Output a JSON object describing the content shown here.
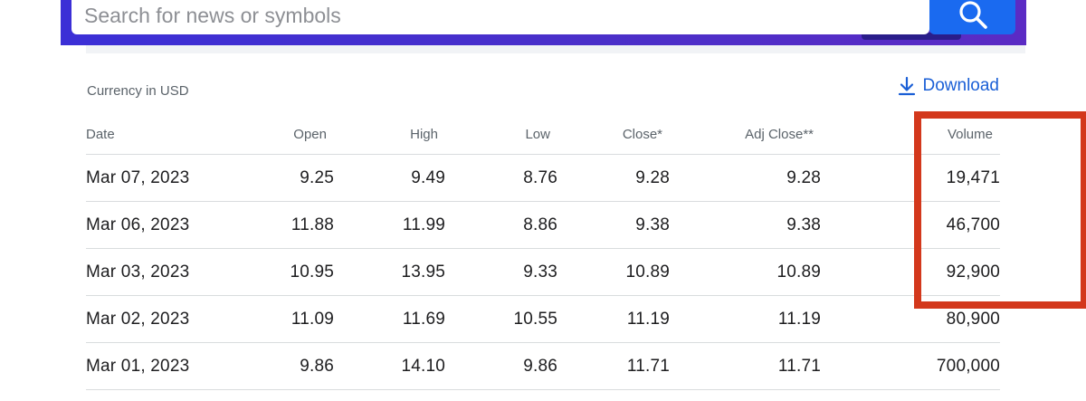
{
  "search": {
    "placeholder": "Search for news or symbols",
    "button_icon": "search-icon"
  },
  "colors": {
    "brand_gradient": [
      "#3b2fd6",
      "#5b2bc4"
    ],
    "search_button": "#1a6af0",
    "link": "#1a5fd6",
    "highlight": "#d3381c"
  },
  "currency_note": "Currency in USD",
  "download": {
    "icon": "download-icon",
    "label": "Download"
  },
  "table": {
    "columns": [
      "Date",
      "Open",
      "High",
      "Low",
      "Close*",
      "Adj Close**",
      "Volume"
    ],
    "rows": [
      [
        "Mar 07, 2023",
        "9.25",
        "9.49",
        "8.76",
        "9.28",
        "9.28",
        "19,471"
      ],
      [
        "Mar 06, 2023",
        "11.88",
        "11.99",
        "8.86",
        "9.38",
        "9.38",
        "46,700"
      ],
      [
        "Mar 03, 2023",
        "10.95",
        "13.95",
        "9.33",
        "10.89",
        "10.89",
        "92,900"
      ],
      [
        "Mar 02, 2023",
        "11.09",
        "11.69",
        "10.55",
        "11.19",
        "11.19",
        "80,900"
      ],
      [
        "Mar 01, 2023",
        "9.86",
        "14.10",
        "9.86",
        "11.71",
        "11.71",
        "700,000"
      ]
    ]
  }
}
